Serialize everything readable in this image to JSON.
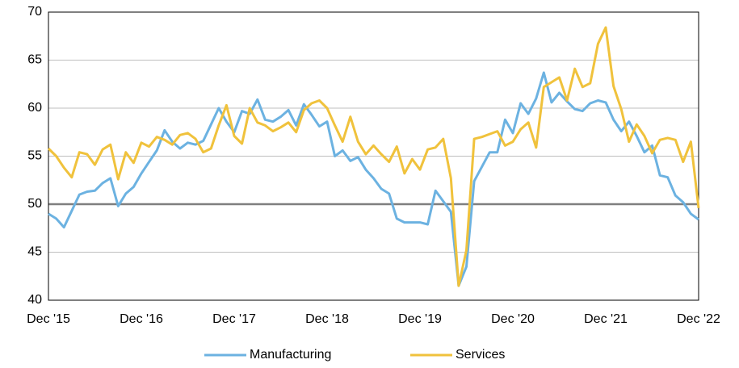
{
  "chart_data": {
    "type": "line",
    "categories": [
      "Dec '15",
      null,
      null,
      null,
      null,
      null,
      null,
      null,
      null,
      null,
      null,
      null,
      "Dec '16",
      null,
      null,
      null,
      null,
      null,
      null,
      null,
      null,
      null,
      null,
      null,
      "Dec '17",
      null,
      null,
      null,
      null,
      null,
      null,
      null,
      null,
      null,
      null,
      null,
      "Dec '18",
      null,
      null,
      null,
      null,
      null,
      null,
      null,
      null,
      null,
      null,
      null,
      "Dec '19",
      null,
      null,
      null,
      null,
      null,
      null,
      null,
      null,
      null,
      null,
      null,
      "Dec '20",
      null,
      null,
      null,
      null,
      null,
      null,
      null,
      null,
      null,
      null,
      null,
      "Dec '21",
      null,
      null,
      null,
      null,
      null,
      null,
      null,
      null,
      null,
      null,
      null,
      "Dec '22"
    ],
    "series": [
      {
        "name": "Manufacturing",
        "color": "#6cb2e1",
        "values": [
          49,
          48.5,
          47.6,
          49.3,
          51,
          51.3,
          51.4,
          52.2,
          52.7,
          49.8,
          51.1,
          51.8,
          53.2,
          54.4,
          55.6,
          57.7,
          56.5,
          55.8,
          56.4,
          56.2,
          56.6,
          58.3,
          60,
          58.6,
          57.5,
          59.7,
          59.4,
          60.9,
          58.8,
          58.6,
          59.1,
          59.8,
          58.2,
          60.4,
          59.3,
          58.1,
          58.6,
          55,
          55.6,
          54.5,
          54.9,
          53.6,
          52.7,
          51.6,
          51.1,
          48.5,
          48.1,
          48.1,
          48.1,
          47.9,
          51.4,
          50.3,
          49.2,
          41.5,
          43.5,
          52.4,
          53.9,
          55.4,
          55.4,
          58.8,
          57.4,
          60.5,
          59.4,
          61,
          63.7,
          60.6,
          61.6,
          60.7,
          59.9,
          59.7,
          60.5,
          60.8,
          60.6,
          58.8,
          57.6,
          58.6,
          57.1,
          55.4,
          56.1,
          53,
          52.8,
          50.9,
          50.2,
          49,
          48.4
        ]
      },
      {
        "name": "Services",
        "color": "#f0c23c",
        "values": [
          55.8,
          55,
          53.8,
          52.8,
          55.4,
          55.2,
          54.1,
          55.7,
          56.2,
          52.6,
          55.4,
          54.3,
          56.4,
          56,
          57,
          56.7,
          56.2,
          57.2,
          57.4,
          56.8,
          55.4,
          55.8,
          58.2,
          60.3,
          57.1,
          56.3,
          60,
          58.5,
          58.2,
          57.6,
          58,
          58.5,
          57.5,
          59.8,
          60.5,
          60.8,
          60,
          58.2,
          56.5,
          59.1,
          56.5,
          55.2,
          56.1,
          55.2,
          54.4,
          56,
          53.2,
          54.7,
          53.6,
          55.7,
          55.9,
          56.8,
          52.7,
          41.5,
          45.2,
          56.8,
          57,
          57.3,
          57.6,
          56.1,
          56.5,
          57.8,
          58.5,
          55.9,
          62.2,
          62.7,
          63.2,
          60.8,
          64.1,
          62.2,
          62.6,
          66.7,
          68.4,
          62.3,
          59.9,
          56.5,
          58.3,
          57.1,
          55.3,
          56.7,
          56.9,
          56.7,
          54.4,
          56.5,
          49.6
        ]
      }
    ],
    "ylim": [
      40,
      70
    ],
    "yticks": [
      40,
      45,
      50,
      55,
      60,
      65,
      70
    ],
    "grid": true,
    "reference_line": 50,
    "legend": "bottom"
  }
}
